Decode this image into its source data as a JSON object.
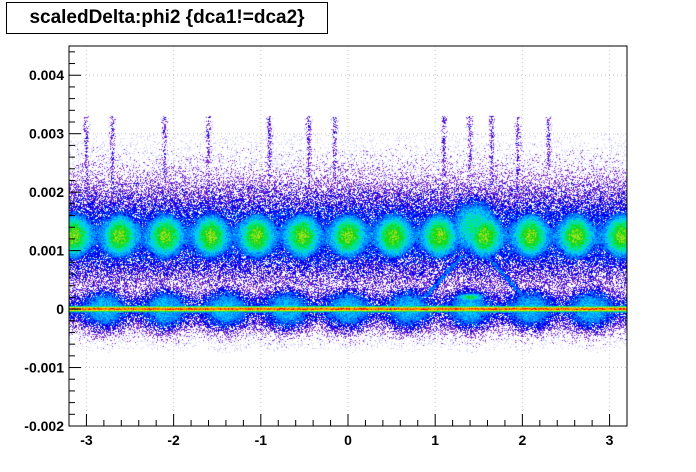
{
  "chart_data": {
    "type": "heatmap",
    "title": "scaledDelta:phi2 {dca1!=dca2}",
    "xlim": [
      -3.2,
      3.2
    ],
    "ylim": [
      -0.002,
      0.0045
    ],
    "x_ticks": [
      -3,
      -2,
      -1,
      0,
      1,
      2,
      3
    ],
    "x_tick_labels": [
      "-3",
      "-2",
      "-1",
      "0",
      "1",
      "2",
      "3"
    ],
    "y_ticks": [
      -0.002,
      -0.001,
      0,
      0.001,
      0.002,
      0.003,
      0.004
    ],
    "y_tick_labels": [
      "-0.002",
      "-0.001",
      "0",
      "0.001",
      "0.002",
      "0.003",
      "0.004"
    ],
    "grid": true,
    "colors": {
      "palette": [
        "#c9c9f5",
        "#7f2fd0",
        "#0000ee",
        "#0077ff",
        "#00c8ff",
        "#00e68a",
        "#18d818",
        "#a0e020",
        "#f0f000",
        "#ff8800",
        "#ff0000"
      ],
      "grid": "#c8c8c8",
      "axis": "#000000"
    },
    "features": [
      {
        "name": "central band",
        "x_range": [
          -3.2,
          3.2
        ],
        "y_center": 0.00125,
        "y_halfwidth": 0.0003,
        "peak_level": 0.72,
        "periodic_blobs": 24
      },
      {
        "name": "outer band halo",
        "x_range": [
          -3.2,
          3.2
        ],
        "y_center": 0.00125,
        "y_halfwidth": 0.00075,
        "peak_level": 0.3
      },
      {
        "name": "zero line",
        "x_range": [
          -3.2,
          3.2
        ],
        "y_center": 0.0,
        "y_halfwidth": 4e-05,
        "peak_level": 1.0
      },
      {
        "name": "zero halo",
        "x_range": [
          -3.2,
          3.2
        ],
        "y_center": 0.0,
        "y_halfwidth": 0.0003,
        "peak_level": 0.45
      },
      {
        "name": "bump near 1.45",
        "x_center": 1.45,
        "x_halfwidth": 0.25,
        "y_center": 0.0014,
        "peak_level": 0.55
      },
      {
        "name": "arc near 1.45",
        "x_center": 1.45,
        "y_range": [
          0.0002,
          0.0009
        ],
        "peak_level": 0.35
      },
      {
        "name": "blob near 1.4",
        "x_center": 1.4,
        "y_center": 0.0002,
        "peak_level": 0.6
      },
      {
        "name": "vertical spikes",
        "x": [
          -3.0,
          -2.7,
          -2.1,
          -1.6,
          -0.9,
          -0.45,
          -0.15,
          1.1,
          1.4,
          1.65,
          1.95,
          2.3
        ],
        "y_range": [
          0.0018,
          0.0033
        ],
        "peak_level": 0.18
      }
    ]
  }
}
